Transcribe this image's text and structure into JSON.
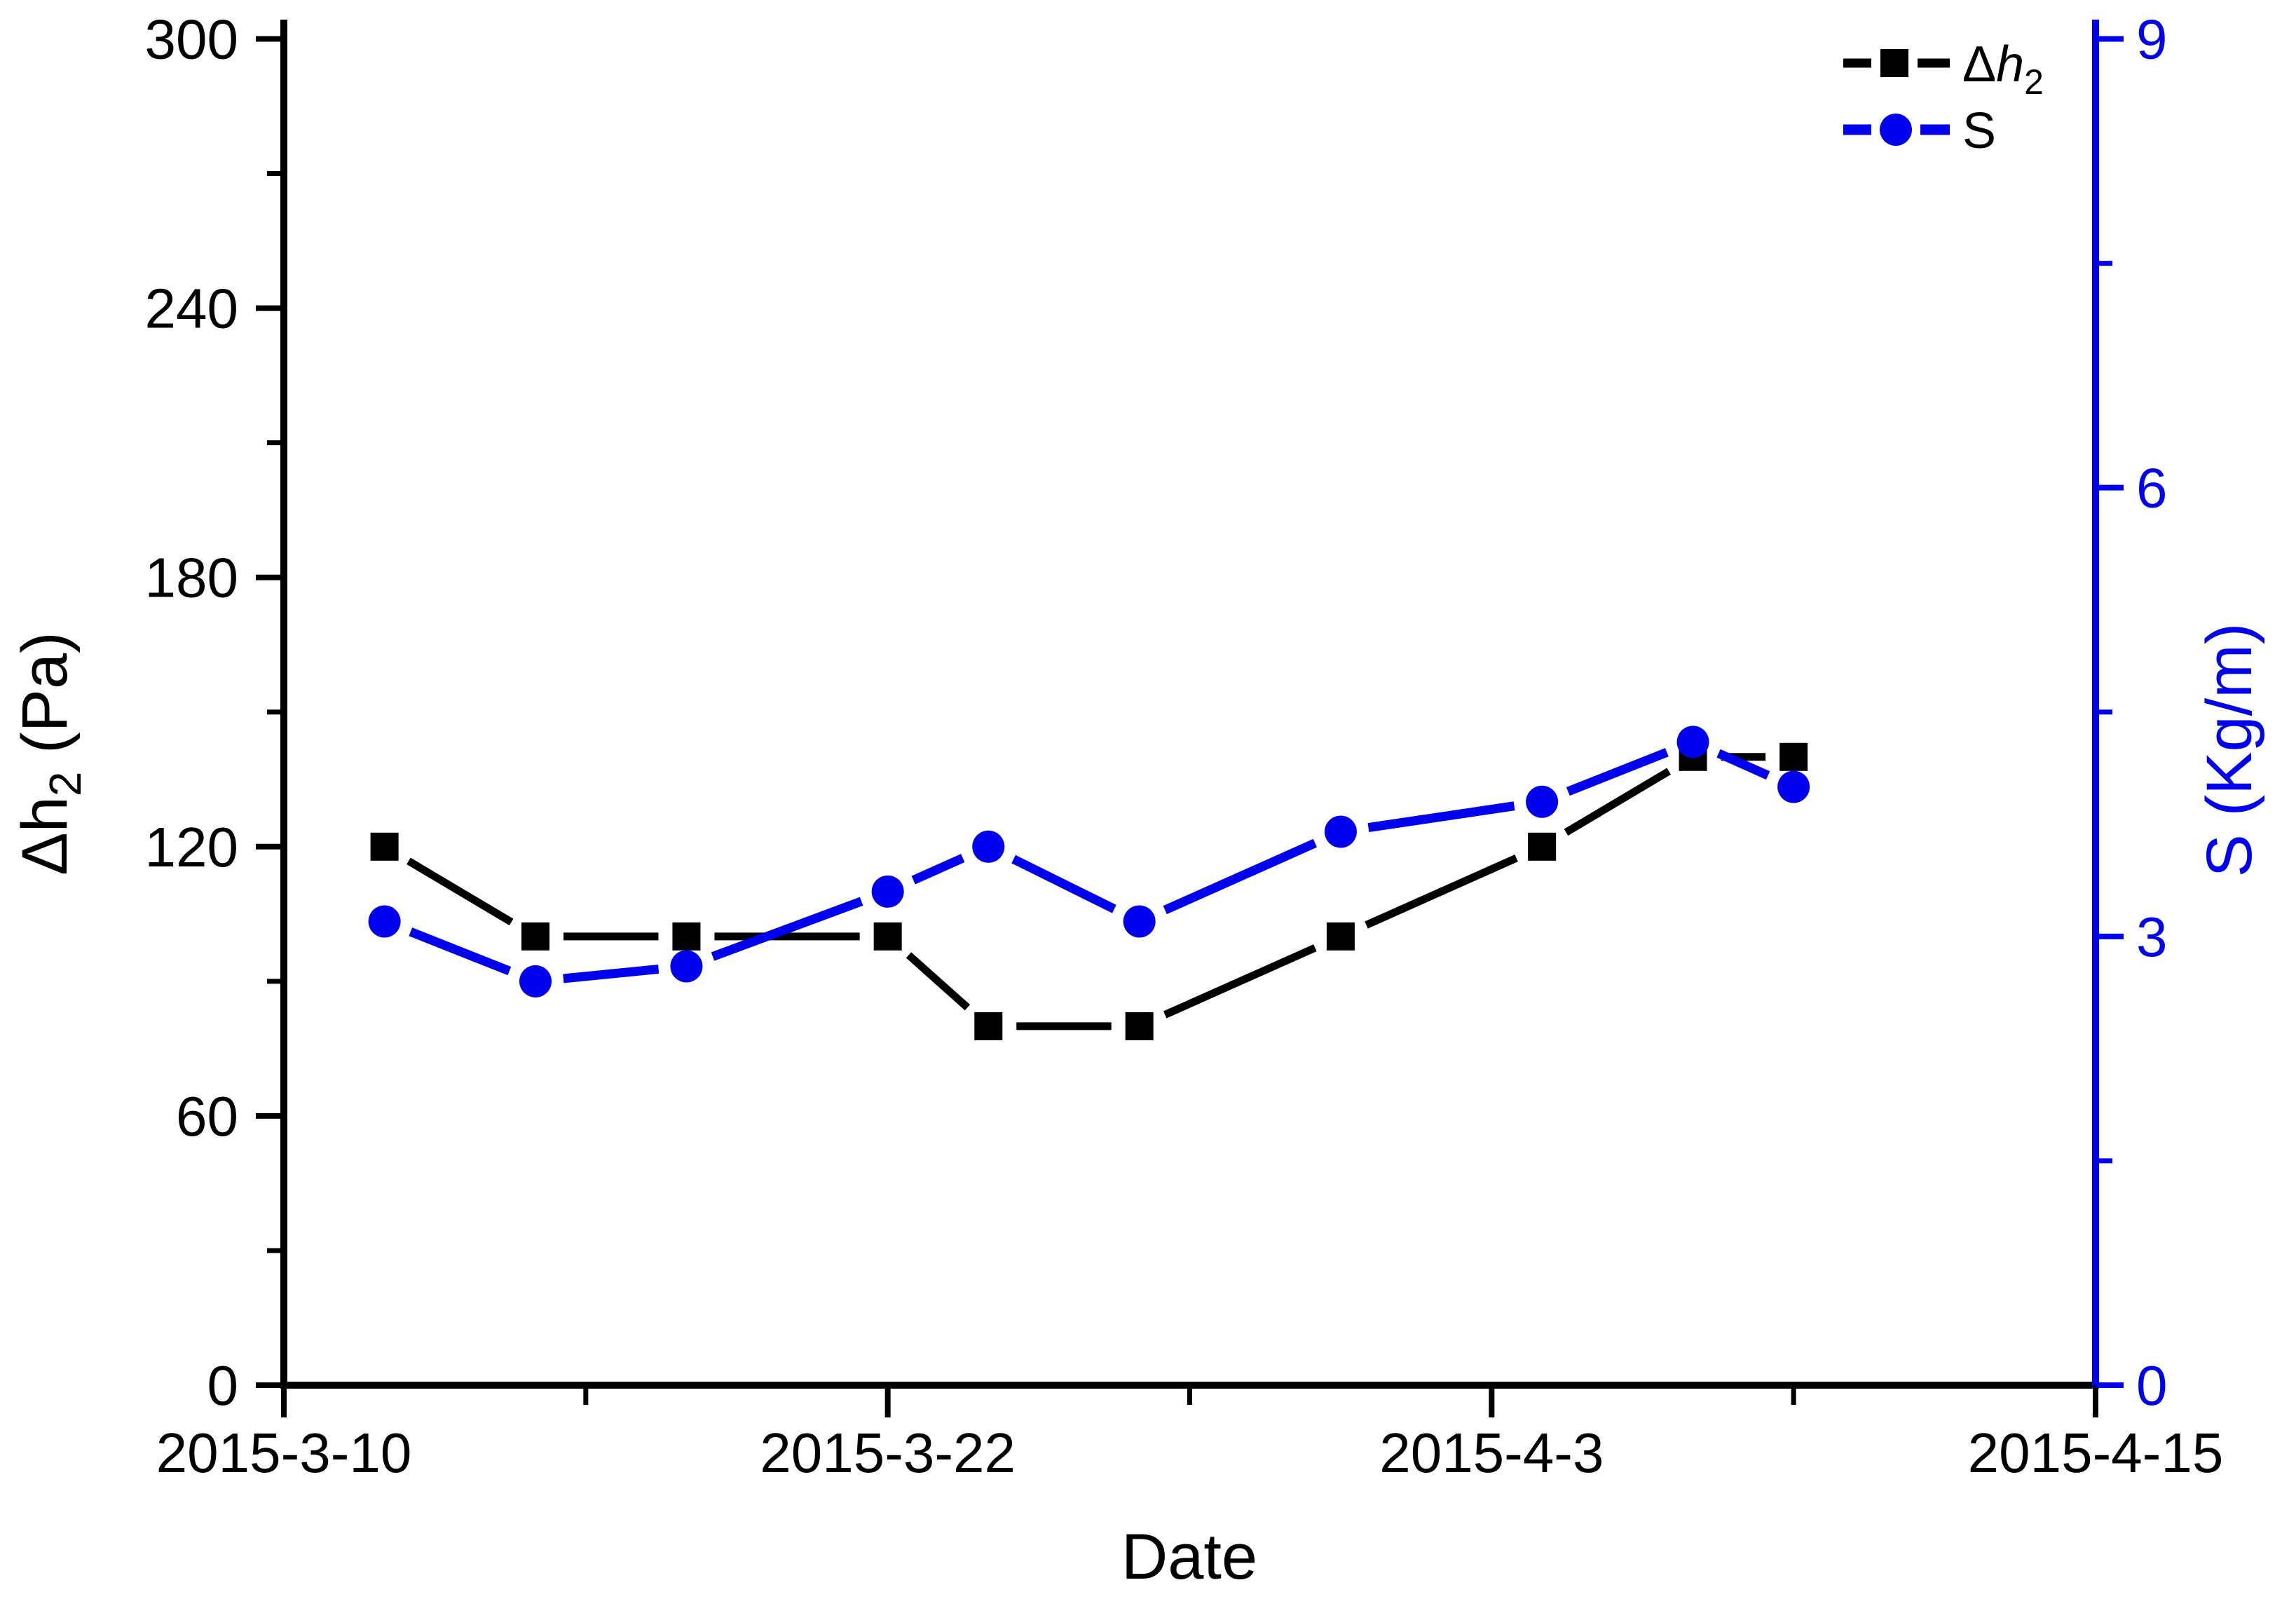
{
  "page": {
    "background": "#ffffff"
  },
  "colors": {
    "left_series": "#000000",
    "right_series": "#0000ee",
    "text": "#000000"
  },
  "legend": {
    "position": "top-right",
    "items": [
      {
        "pre": "Δ",
        "main": "h",
        "sub": "2",
        "marker": "square",
        "color": "#000000"
      },
      {
        "label": "S",
        "marker": "circle",
        "color": "#0000ee"
      }
    ]
  },
  "chart_data": {
    "type": "line",
    "title": "",
    "xlabel": "Date",
    "ylabel_left_parts": {
      "main": "Δh",
      "sub": "2",
      "unit": " (Pa)"
    },
    "ylabel_right": "S (Kg/m)",
    "x_axis": {
      "origin_date": "2015-3-10",
      "end_date": "2015-4-15",
      "span_days": 36,
      "major_tick_days": [
        0,
        12,
        24,
        36
      ],
      "major_tick_labels": [
        "2015-3-10",
        "2015-3-22",
        "2015-4-3",
        "2015-4-15"
      ],
      "minor_tick_days": [
        6,
        18,
        30
      ]
    },
    "left_axis": {
      "ylim": [
        0,
        300
      ],
      "major_ticks": [
        0,
        60,
        120,
        180,
        240,
        300
      ],
      "major_tick_labels": [
        "0",
        "60",
        "120",
        "180",
        "240",
        "300"
      ],
      "minor_ticks": [
        30,
        90,
        150,
        210,
        270
      ],
      "color": "#000000"
    },
    "right_axis": {
      "ylim": [
        0,
        9
      ],
      "major_ticks": [
        0,
        3,
        6,
        9
      ],
      "major_tick_labels": [
        "0",
        "3",
        "6",
        "9"
      ],
      "minor_ticks": [
        1.5,
        4.5,
        7.5
      ],
      "color": "#0000ee"
    },
    "x_dates": [
      "2015-3-12",
      "2015-3-15",
      "2015-3-18",
      "2015-3-22",
      "2015-3-24",
      "2015-3-27",
      "2015-3-31",
      "2015-4-4",
      "2015-4-7",
      "2015-4-9"
    ],
    "x_days": [
      2,
      5,
      8,
      12,
      14,
      17,
      21,
      25,
      28,
      30
    ],
    "series": [
      {
        "name": "Δh2",
        "axis": "left",
        "marker": "square",
        "color": "#000000",
        "values": [
          120,
          100,
          100,
          100,
          80,
          80,
          100,
          120,
          140,
          140
        ]
      },
      {
        "name": "S",
        "axis": "right",
        "marker": "circle",
        "color": "#0000ee",
        "values": [
          3.1,
          2.7,
          2.8,
          3.3,
          3.6,
          3.1,
          3.7,
          3.9,
          4.3,
          4.0
        ]
      }
    ],
    "grid": false,
    "legend_position": "top-right"
  }
}
